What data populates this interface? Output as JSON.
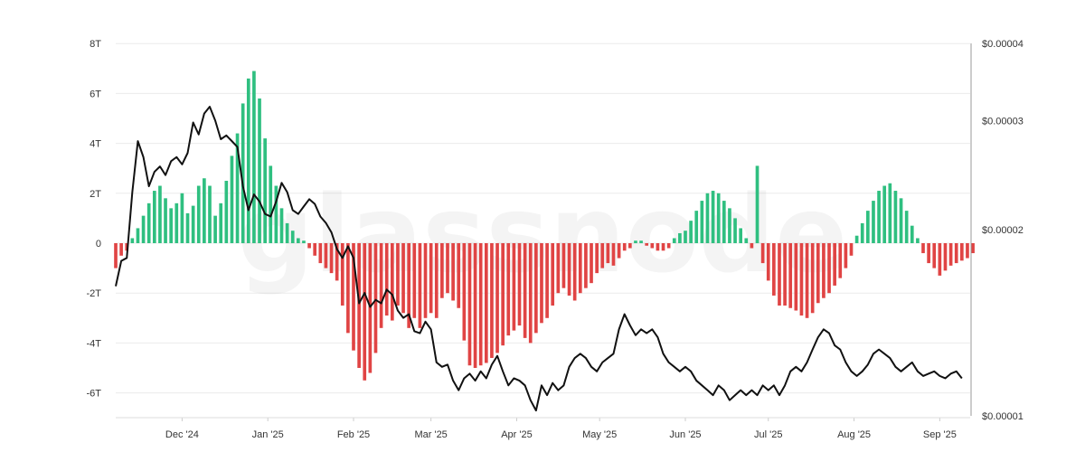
{
  "watermark": "glassnode",
  "chart_data": {
    "type": "bar+line",
    "title": "",
    "grid": "horizontal",
    "left_axis": {
      "ylim": [
        -7000000000000,
        8000000000000
      ],
      "ticks": [
        {
          "value": 8000000000000,
          "label": "8T"
        },
        {
          "value": 6000000000000,
          "label": "6T"
        },
        {
          "value": 4000000000000,
          "label": "4T"
        },
        {
          "value": 2000000000000,
          "label": "2T"
        },
        {
          "value": 0,
          "label": "0"
        },
        {
          "value": -2000000000000,
          "label": "-2T"
        },
        {
          "value": -4000000000000,
          "label": "-4T"
        },
        {
          "value": -6000000000000,
          "label": "-6T"
        }
      ]
    },
    "right_axis": {
      "scale": "log",
      "ylim": [
        1e-05,
        4e-05
      ],
      "ticks": [
        {
          "value": 4e-05,
          "label": "$0.00004"
        },
        {
          "value": 3e-05,
          "label": "$0.00003"
        },
        {
          "value": 2e-05,
          "label": "$0.00002"
        },
        {
          "value": 1e-05,
          "label": "$0.00001"
        }
      ]
    },
    "x_axis": {
      "range": [
        "2024-11-07",
        "2025-09-12"
      ],
      "ticks": [
        {
          "date": "2024-12-01",
          "label": "Dec '24"
        },
        {
          "date": "2025-01-01",
          "label": "Jan '25"
        },
        {
          "date": "2025-02-01",
          "label": "Feb '25"
        },
        {
          "date": "2025-03-01",
          "label": "Mar '25"
        },
        {
          "date": "2025-04-01",
          "label": "Apr '25"
        },
        {
          "date": "2025-05-01",
          "label": "May '25"
        },
        {
          "date": "2025-06-01",
          "label": "Jun '25"
        },
        {
          "date": "2025-07-01",
          "label": "Jul '25"
        },
        {
          "date": "2025-08-01",
          "label": "Aug '25"
        },
        {
          "date": "2025-09-01",
          "label": "Sep '25"
        }
      ]
    },
    "colors": {
      "positive": "#2fbf80",
      "negative": "#e04444",
      "price": "#111111",
      "grid": "#ececec",
      "axis": "#999999"
    },
    "bars": {
      "start_date": "2024-11-07",
      "step_days": 2,
      "values_T": [
        -1.0,
        -0.5,
        -0.3,
        0.2,
        0.6,
        1.1,
        1.6,
        2.1,
        2.3,
        1.8,
        1.4,
        1.6,
        2.0,
        1.2,
        1.5,
        2.3,
        2.6,
        2.3,
        1.1,
        1.6,
        2.5,
        3.5,
        4.4,
        5.6,
        6.6,
        6.9,
        5.8,
        4.2,
        3.1,
        2.3,
        1.4,
        0.8,
        0.5,
        0.2,
        0.1,
        -0.2,
        -0.5,
        -0.8,
        -1.0,
        -1.2,
        -1.5,
        -2.5,
        -3.6,
        -4.3,
        -5.0,
        -5.5,
        -5.2,
        -4.4,
        -3.4,
        -2.9,
        -3.1,
        -2.5,
        -2.8,
        -3.4,
        -3.0,
        -3.4,
        -3.0,
        -2.8,
        -3.0,
        -2.2,
        -2.0,
        -2.3,
        -2.6,
        -3.9,
        -4.9,
        -5.0,
        -4.9,
        -4.8,
        -4.6,
        -4.4,
        -4.1,
        -3.7,
        -3.5,
        -3.3,
        -3.8,
        -4.0,
        -3.6,
        -3.2,
        -3.0,
        -2.5,
        -2.0,
        -1.8,
        -2.1,
        -2.3,
        -2.0,
        -1.8,
        -1.6,
        -1.2,
        -1.0,
        -0.8,
        -0.9,
        -0.6,
        -0.3,
        -0.2,
        0.1,
        0.1,
        -0.1,
        -0.2,
        -0.3,
        -0.3,
        -0.2,
        0.2,
        0.4,
        0.5,
        0.9,
        1.3,
        1.7,
        2.0,
        2.1,
        2.0,
        1.7,
        1.4,
        1.0,
        0.6,
        0.2,
        -0.2,
        3.1,
        -0.8,
        -1.5,
        -2.1,
        -2.5,
        -2.5,
        -2.6,
        -2.7,
        -2.9,
        -3.0,
        -2.8,
        -2.4,
        -2.2,
        -2.0,
        -1.7,
        -1.4,
        -1.0,
        -0.5,
        0.3,
        0.8,
        1.3,
        1.7,
        2.1,
        2.3,
        2.4,
        2.1,
        1.8,
        1.3,
        0.7,
        0.2,
        -0.4,
        -0.8,
        -1.0,
        -1.3,
        -1.1,
        -0.9,
        -0.8,
        -0.7,
        -0.6,
        -0.4
      ]
    },
    "price": {
      "points": [
        [
          "2024-11-07",
          1.62e-05
        ],
        [
          "2024-11-09",
          1.78e-05
        ],
        [
          "2024-11-11",
          1.8e-05
        ],
        [
          "2024-11-13",
          2.3e-05
        ],
        [
          "2024-11-15",
          2.78e-05
        ],
        [
          "2024-11-17",
          2.62e-05
        ],
        [
          "2024-11-19",
          2.35e-05
        ],
        [
          "2024-11-21",
          2.48e-05
        ],
        [
          "2024-11-23",
          2.53e-05
        ],
        [
          "2024-11-25",
          2.45e-05
        ],
        [
          "2024-11-27",
          2.58e-05
        ],
        [
          "2024-11-29",
          2.62e-05
        ],
        [
          "2024-12-01",
          2.55e-05
        ],
        [
          "2024-12-03",
          2.66e-05
        ],
        [
          "2024-12-05",
          2.98e-05
        ],
        [
          "2024-12-07",
          2.85e-05
        ],
        [
          "2024-12-09",
          3.08e-05
        ],
        [
          "2024-12-11",
          3.16e-05
        ],
        [
          "2024-12-13",
          3e-05
        ],
        [
          "2024-12-15",
          2.8e-05
        ],
        [
          "2024-12-17",
          2.84e-05
        ],
        [
          "2024-12-19",
          2.78e-05
        ],
        [
          "2024-12-21",
          2.72e-05
        ],
        [
          "2024-12-23",
          2.35e-05
        ],
        [
          "2024-12-25",
          2.15e-05
        ],
        [
          "2024-12-27",
          2.28e-05
        ],
        [
          "2024-12-29",
          2.22e-05
        ],
        [
          "2024-12-31",
          2.12e-05
        ],
        [
          "2025-01-02",
          2.1e-05
        ],
        [
          "2025-01-04",
          2.22e-05
        ],
        [
          "2025-01-06",
          2.38e-05
        ],
        [
          "2025-01-08",
          2.3e-05
        ],
        [
          "2025-01-10",
          2.15e-05
        ],
        [
          "2025-01-12",
          2.12e-05
        ],
        [
          "2025-01-14",
          2.18e-05
        ],
        [
          "2025-01-16",
          2.24e-05
        ],
        [
          "2025-01-18",
          2.2e-05
        ],
        [
          "2025-01-20",
          2.1e-05
        ],
        [
          "2025-01-22",
          2.05e-05
        ],
        [
          "2025-01-24",
          1.98e-05
        ],
        [
          "2025-01-26",
          1.86e-05
        ],
        [
          "2025-01-28",
          1.8e-05
        ],
        [
          "2025-01-30",
          1.88e-05
        ],
        [
          "2025-02-01",
          1.8e-05
        ],
        [
          "2025-02-03",
          1.52e-05
        ],
        [
          "2025-02-05",
          1.58e-05
        ],
        [
          "2025-02-07",
          1.5e-05
        ],
        [
          "2025-02-09",
          1.54e-05
        ],
        [
          "2025-02-11",
          1.52e-05
        ],
        [
          "2025-02-13",
          1.6e-05
        ],
        [
          "2025-02-15",
          1.57e-05
        ],
        [
          "2025-02-17",
          1.48e-05
        ],
        [
          "2025-02-19",
          1.44e-05
        ],
        [
          "2025-02-21",
          1.46e-05
        ],
        [
          "2025-02-23",
          1.37e-05
        ],
        [
          "2025-02-25",
          1.36e-05
        ],
        [
          "2025-02-27",
          1.42e-05
        ],
        [
          "2025-03-01",
          1.38e-05
        ],
        [
          "2025-03-03",
          1.22e-05
        ],
        [
          "2025-03-05",
          1.2e-05
        ],
        [
          "2025-03-07",
          1.21e-05
        ],
        [
          "2025-03-09",
          1.14e-05
        ],
        [
          "2025-03-11",
          1.1e-05
        ],
        [
          "2025-03-13",
          1.15e-05
        ],
        [
          "2025-03-15",
          1.17e-05
        ],
        [
          "2025-03-17",
          1.14e-05
        ],
        [
          "2025-03-19",
          1.18e-05
        ],
        [
          "2025-03-21",
          1.15e-05
        ],
        [
          "2025-03-23",
          1.21e-05
        ],
        [
          "2025-03-25",
          1.25e-05
        ],
        [
          "2025-03-27",
          1.18e-05
        ],
        [
          "2025-03-29",
          1.12e-05
        ],
        [
          "2025-03-31",
          1.15e-05
        ],
        [
          "2025-04-02",
          1.14e-05
        ],
        [
          "2025-04-04",
          1.12e-05
        ],
        [
          "2025-04-06",
          1.06e-05
        ],
        [
          "2025-04-08",
          1.02e-05
        ],
        [
          "2025-04-10",
          1.12e-05
        ],
        [
          "2025-04-12",
          1.08e-05
        ],
        [
          "2025-04-14",
          1.13e-05
        ],
        [
          "2025-04-16",
          1.1e-05
        ],
        [
          "2025-04-18",
          1.12e-05
        ],
        [
          "2025-04-20",
          1.2e-05
        ],
        [
          "2025-04-22",
          1.24e-05
        ],
        [
          "2025-04-24",
          1.26e-05
        ],
        [
          "2025-04-26",
          1.24e-05
        ],
        [
          "2025-04-28",
          1.2e-05
        ],
        [
          "2025-04-30",
          1.18e-05
        ],
        [
          "2025-05-02",
          1.22e-05
        ],
        [
          "2025-05-04",
          1.24e-05
        ],
        [
          "2025-05-06",
          1.26e-05
        ],
        [
          "2025-05-08",
          1.38e-05
        ],
        [
          "2025-05-10",
          1.46e-05
        ],
        [
          "2025-05-12",
          1.4e-05
        ],
        [
          "2025-05-14",
          1.35e-05
        ],
        [
          "2025-05-16",
          1.38e-05
        ],
        [
          "2025-05-18",
          1.36e-05
        ],
        [
          "2025-05-20",
          1.38e-05
        ],
        [
          "2025-05-22",
          1.34e-05
        ],
        [
          "2025-05-24",
          1.26e-05
        ],
        [
          "2025-05-26",
          1.22e-05
        ],
        [
          "2025-05-28",
          1.2e-05
        ],
        [
          "2025-05-30",
          1.18e-05
        ],
        [
          "2025-06-01",
          1.2e-05
        ],
        [
          "2025-06-03",
          1.18e-05
        ],
        [
          "2025-06-05",
          1.14e-05
        ],
        [
          "2025-06-07",
          1.12e-05
        ],
        [
          "2025-06-09",
          1.1e-05
        ],
        [
          "2025-06-11",
          1.08e-05
        ],
        [
          "2025-06-13",
          1.12e-05
        ],
        [
          "2025-06-15",
          1.1e-05
        ],
        [
          "2025-06-17",
          1.06e-05
        ],
        [
          "2025-06-19",
          1.08e-05
        ],
        [
          "2025-06-21",
          1.1e-05
        ],
        [
          "2025-06-23",
          1.08e-05
        ],
        [
          "2025-06-25",
          1.1e-05
        ],
        [
          "2025-06-27",
          1.08e-05
        ],
        [
          "2025-06-29",
          1.12e-05
        ],
        [
          "2025-07-01",
          1.1e-05
        ],
        [
          "2025-07-03",
          1.12e-05
        ],
        [
          "2025-07-05",
          1.08e-05
        ],
        [
          "2025-07-07",
          1.12e-05
        ],
        [
          "2025-07-09",
          1.18e-05
        ],
        [
          "2025-07-11",
          1.2e-05
        ],
        [
          "2025-07-13",
          1.18e-05
        ],
        [
          "2025-07-15",
          1.22e-05
        ],
        [
          "2025-07-17",
          1.28e-05
        ],
        [
          "2025-07-19",
          1.34e-05
        ],
        [
          "2025-07-21",
          1.38e-05
        ],
        [
          "2025-07-23",
          1.36e-05
        ],
        [
          "2025-07-25",
          1.3e-05
        ],
        [
          "2025-07-27",
          1.28e-05
        ],
        [
          "2025-07-29",
          1.22e-05
        ],
        [
          "2025-07-31",
          1.18e-05
        ],
        [
          "2025-08-02",
          1.16e-05
        ],
        [
          "2025-08-04",
          1.18e-05
        ],
        [
          "2025-08-06",
          1.21e-05
        ],
        [
          "2025-08-08",
          1.26e-05
        ],
        [
          "2025-08-10",
          1.28e-05
        ],
        [
          "2025-08-12",
          1.26e-05
        ],
        [
          "2025-08-14",
          1.24e-05
        ],
        [
          "2025-08-16",
          1.2e-05
        ],
        [
          "2025-08-18",
          1.18e-05
        ],
        [
          "2025-08-20",
          1.2e-05
        ],
        [
          "2025-08-22",
          1.22e-05
        ],
        [
          "2025-08-24",
          1.18e-05
        ],
        [
          "2025-08-26",
          1.16e-05
        ],
        [
          "2025-08-28",
          1.17e-05
        ],
        [
          "2025-08-30",
          1.18e-05
        ],
        [
          "2025-09-01",
          1.16e-05
        ],
        [
          "2025-09-03",
          1.15e-05
        ],
        [
          "2025-09-05",
          1.17e-05
        ],
        [
          "2025-09-07",
          1.18e-05
        ],
        [
          "2025-09-09",
          1.15e-05
        ]
      ]
    }
  }
}
